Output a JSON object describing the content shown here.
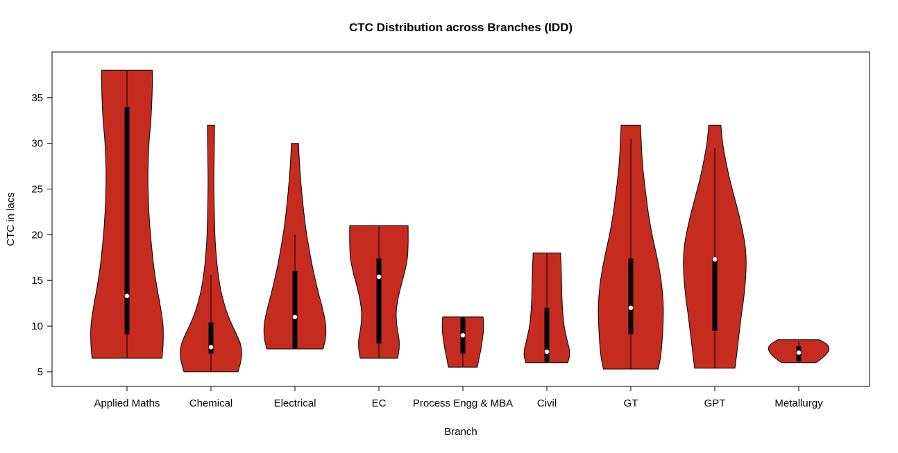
{
  "title": "CTC Distribution across Branches (IDD)",
  "colors": {
    "background": "#FFFFFF",
    "violin_fill": "#C62B20",
    "violin_stroke": "#000000",
    "box_fill": "#000000",
    "median_dot": "#FFFFFF",
    "axis": "#000000"
  },
  "chart_data": {
    "type": "violin",
    "title": "CTC Distribution across Branches (IDD)",
    "xlabel": "Branch",
    "ylabel": "CTC in lacs",
    "ylim": [
      3.4,
      40.0
    ],
    "yticks": [
      5,
      10,
      15,
      20,
      25,
      30,
      35
    ],
    "grid": false,
    "legend": false,
    "categories": [
      "Applied Maths",
      "Chemical",
      "Electrical",
      "EC",
      "Process Engg & MBA",
      "Civil",
      "GT",
      "GPT",
      "Metallurgy"
    ],
    "violins": [
      {
        "branch": "Applied Maths",
        "min": 6.5,
        "max": 38,
        "q1": 9.1,
        "median": 13.3,
        "q3": 34,
        "whisker_low": 6.5,
        "whisker_high": 38,
        "shape": [
          [
            6.5,
            0.97
          ],
          [
            8,
            1.0
          ],
          [
            10,
            1.0
          ],
          [
            12,
            0.93
          ],
          [
            14,
            0.84
          ],
          [
            16,
            0.76
          ],
          [
            18,
            0.7
          ],
          [
            21,
            0.63
          ],
          [
            24,
            0.59
          ],
          [
            27,
            0.58
          ],
          [
            30,
            0.61
          ],
          [
            33,
            0.67
          ],
          [
            36,
            0.7
          ],
          [
            38,
            0.7
          ]
        ]
      },
      {
        "branch": "Chemical",
        "min": 5,
        "max": 32,
        "q1": 7,
        "median": 7.7,
        "q3": 10.4,
        "whisker_low": 5,
        "whisker_high": 15.6,
        "shape": [
          [
            5,
            0.75
          ],
          [
            6,
            0.82
          ],
          [
            7,
            0.85
          ],
          [
            8,
            0.82
          ],
          [
            9,
            0.72
          ],
          [
            10,
            0.6
          ],
          [
            11,
            0.49
          ],
          [
            12,
            0.4
          ],
          [
            13,
            0.33
          ],
          [
            14,
            0.27
          ],
          [
            16,
            0.19
          ],
          [
            18,
            0.14
          ],
          [
            20,
            0.11
          ],
          [
            23,
            0.09
          ],
          [
            26,
            0.08
          ],
          [
            29,
            0.09
          ],
          [
            32,
            0.1
          ]
        ]
      },
      {
        "branch": "Electrical",
        "min": 7.5,
        "max": 30,
        "q1": 7.6,
        "median": 11,
        "q3": 16,
        "whisker_low": 7.5,
        "whisker_high": 20,
        "shape": [
          [
            7.5,
            0.78
          ],
          [
            8.5,
            0.84
          ],
          [
            9.5,
            0.86
          ],
          [
            10.5,
            0.84
          ],
          [
            12,
            0.76
          ],
          [
            13.5,
            0.66
          ],
          [
            15,
            0.57
          ],
          [
            17,
            0.46
          ],
          [
            19,
            0.37
          ],
          [
            21,
            0.29
          ],
          [
            23,
            0.23
          ],
          [
            25,
            0.18
          ],
          [
            27,
            0.14
          ],
          [
            29,
            0.11
          ],
          [
            30,
            0.1
          ]
        ]
      },
      {
        "branch": "EC",
        "min": 6.5,
        "max": 21,
        "q1": 8.1,
        "median": 15.4,
        "q3": 17.4,
        "whisker_low": 6.5,
        "whisker_high": 21,
        "shape": [
          [
            6.5,
            0.52
          ],
          [
            7.5,
            0.56
          ],
          [
            8.5,
            0.56
          ],
          [
            10,
            0.5
          ],
          [
            11.5,
            0.48
          ],
          [
            13,
            0.53
          ],
          [
            14.5,
            0.62
          ],
          [
            16,
            0.72
          ],
          [
            17.5,
            0.79
          ],
          [
            19,
            0.81
          ],
          [
            21,
            0.81
          ]
        ]
      },
      {
        "branch": "Process Engg & MBA",
        "min": 5.5,
        "max": 11,
        "q1": 7,
        "median": 9,
        "q3": 10.9,
        "whisker_low": 5.5,
        "whisker_high": 11,
        "shape": [
          [
            5.5,
            0.4
          ],
          [
            6.5,
            0.45
          ],
          [
            7.5,
            0.5
          ],
          [
            8.5,
            0.54
          ],
          [
            9.5,
            0.57
          ],
          [
            10.5,
            0.57
          ],
          [
            11,
            0.56
          ]
        ]
      },
      {
        "branch": "Civil",
        "min": 6,
        "max": 18,
        "q1": 6.1,
        "median": 7.2,
        "q3": 12,
        "whisker_low": 6,
        "whisker_high": 18,
        "shape": [
          [
            6,
            0.58
          ],
          [
            6.8,
            0.63
          ],
          [
            7.5,
            0.62
          ],
          [
            8.5,
            0.56
          ],
          [
            10,
            0.48
          ],
          [
            11.5,
            0.44
          ],
          [
            13,
            0.42
          ],
          [
            14.5,
            0.41
          ],
          [
            16,
            0.4
          ],
          [
            18,
            0.38
          ]
        ]
      },
      {
        "branch": "GT",
        "min": 5.3,
        "max": 32,
        "q1": 9.1,
        "median": 12,
        "q3": 17.4,
        "whisker_low": 5.3,
        "whisker_high": 30.5,
        "shape": [
          [
            5.3,
            0.76
          ],
          [
            6.5,
            0.82
          ],
          [
            8,
            0.86
          ],
          [
            10,
            0.89
          ],
          [
            12,
            0.9
          ],
          [
            14,
            0.87
          ],
          [
            16,
            0.8
          ],
          [
            18,
            0.7
          ],
          [
            20,
            0.59
          ],
          [
            22,
            0.5
          ],
          [
            24,
            0.43
          ],
          [
            26,
            0.37
          ],
          [
            28,
            0.32
          ],
          [
            30,
            0.29
          ],
          [
            32,
            0.27
          ]
        ]
      },
      {
        "branch": "GPT",
        "min": 5.4,
        "max": 32,
        "q1": 9.5,
        "median": 17.3,
        "q3": 17.5,
        "whisker_low": 5.4,
        "whisker_high": 29.5,
        "shape": [
          [
            5.4,
            0.56
          ],
          [
            7,
            0.61
          ],
          [
            9,
            0.67
          ],
          [
            11,
            0.73
          ],
          [
            13,
            0.8
          ],
          [
            15,
            0.85
          ],
          [
            17,
            0.87
          ],
          [
            18.5,
            0.85
          ],
          [
            20,
            0.79
          ],
          [
            22,
            0.68
          ],
          [
            24,
            0.55
          ],
          [
            26,
            0.42
          ],
          [
            28,
            0.31
          ],
          [
            30,
            0.22
          ],
          [
            32,
            0.17
          ]
        ]
      },
      {
        "branch": "Metallurgy",
        "min": 6,
        "max": 8.5,
        "q1": 6.2,
        "median": 7.1,
        "q3": 7.8,
        "whisker_low": 6,
        "whisker_high": 8.3,
        "shape": [
          [
            6,
            0.48
          ],
          [
            6.5,
            0.65
          ],
          [
            7,
            0.78
          ],
          [
            7.5,
            0.84
          ],
          [
            8,
            0.78
          ],
          [
            8.5,
            0.58
          ]
        ]
      }
    ]
  }
}
